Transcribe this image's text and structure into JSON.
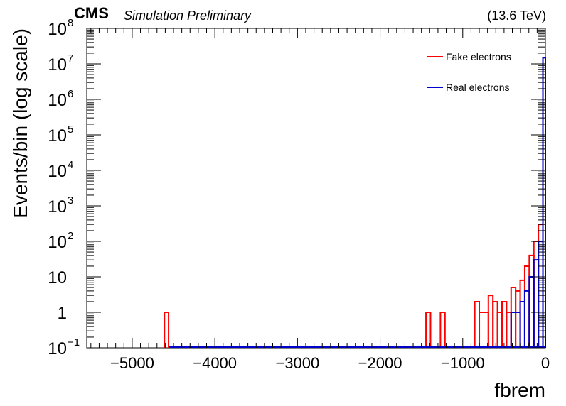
{
  "header": {
    "experiment": "CMS",
    "status": "Simulation Preliminary",
    "energy": "(13.6 TeV)"
  },
  "chart_data": {
    "type": "histogram",
    "xlabel": "fbrem",
    "ylabel": "Events/bin (log scale)",
    "xlim": [
      -5550,
      0
    ],
    "ylim": [
      0.1,
      100000000
    ],
    "y_scale": "log",
    "legend_position": "top-right",
    "x_ticks": [
      -5000,
      -4000,
      -3000,
      -2000,
      -1000,
      0
    ],
    "x_tick_labels": [
      "−5000",
      "−4000",
      "−3000",
      "−2000",
      "−1000",
      "0"
    ],
    "y_ticks": [
      {
        "value": 0.1,
        "base": "10",
        "exp": "−1"
      },
      {
        "value": 1,
        "base": "1",
        "exp": ""
      },
      {
        "value": 10,
        "base": "10",
        "exp": ""
      },
      {
        "value": 100,
        "base": "10",
        "exp": "2"
      },
      {
        "value": 1000,
        "base": "10",
        "exp": "3"
      },
      {
        "value": 10000,
        "base": "10",
        "exp": "4"
      },
      {
        "value": 100000,
        "base": "10",
        "exp": "5"
      },
      {
        "value": 1000000,
        "base": "10",
        "exp": "6"
      },
      {
        "value": 10000000,
        "base": "10",
        "exp": "7"
      },
      {
        "value": 100000000,
        "base": "10",
        "exp": "8"
      }
    ],
    "series": [
      {
        "name": "Fake electrons",
        "color": "#ff0000",
        "bins": [
          [
            -4610,
            -4560,
            1
          ],
          [
            -1445,
            -1390,
            1
          ],
          [
            -1270,
            -1215,
            1
          ],
          [
            -855,
            -800,
            2
          ],
          [
            -800,
            -690,
            1
          ],
          [
            -690,
            -635,
            3
          ],
          [
            -635,
            -580,
            2
          ],
          [
            -580,
            -525,
            1
          ],
          [
            -525,
            -470,
            2
          ],
          [
            -470,
            -415,
            1
          ],
          [
            -415,
            -360,
            5
          ],
          [
            -360,
            -305,
            4
          ],
          [
            -305,
            -250,
            8
          ],
          [
            -250,
            -195,
            20
          ],
          [
            -195,
            -140,
            40
          ],
          [
            -140,
            -85,
            100
          ],
          [
            -85,
            -30,
            300
          ],
          [
            -30,
            0,
            15000000
          ]
        ]
      },
      {
        "name": "Real electrons",
        "color": "#0000cc",
        "bins": [
          [
            -415,
            -305,
            1
          ],
          [
            -305,
            -250,
            2
          ],
          [
            -250,
            -195,
            4
          ],
          [
            -195,
            -140,
            10
          ],
          [
            -140,
            -85,
            30
          ],
          [
            -85,
            -30,
            100
          ],
          [
            -30,
            0,
            15000000
          ]
        ]
      }
    ]
  }
}
